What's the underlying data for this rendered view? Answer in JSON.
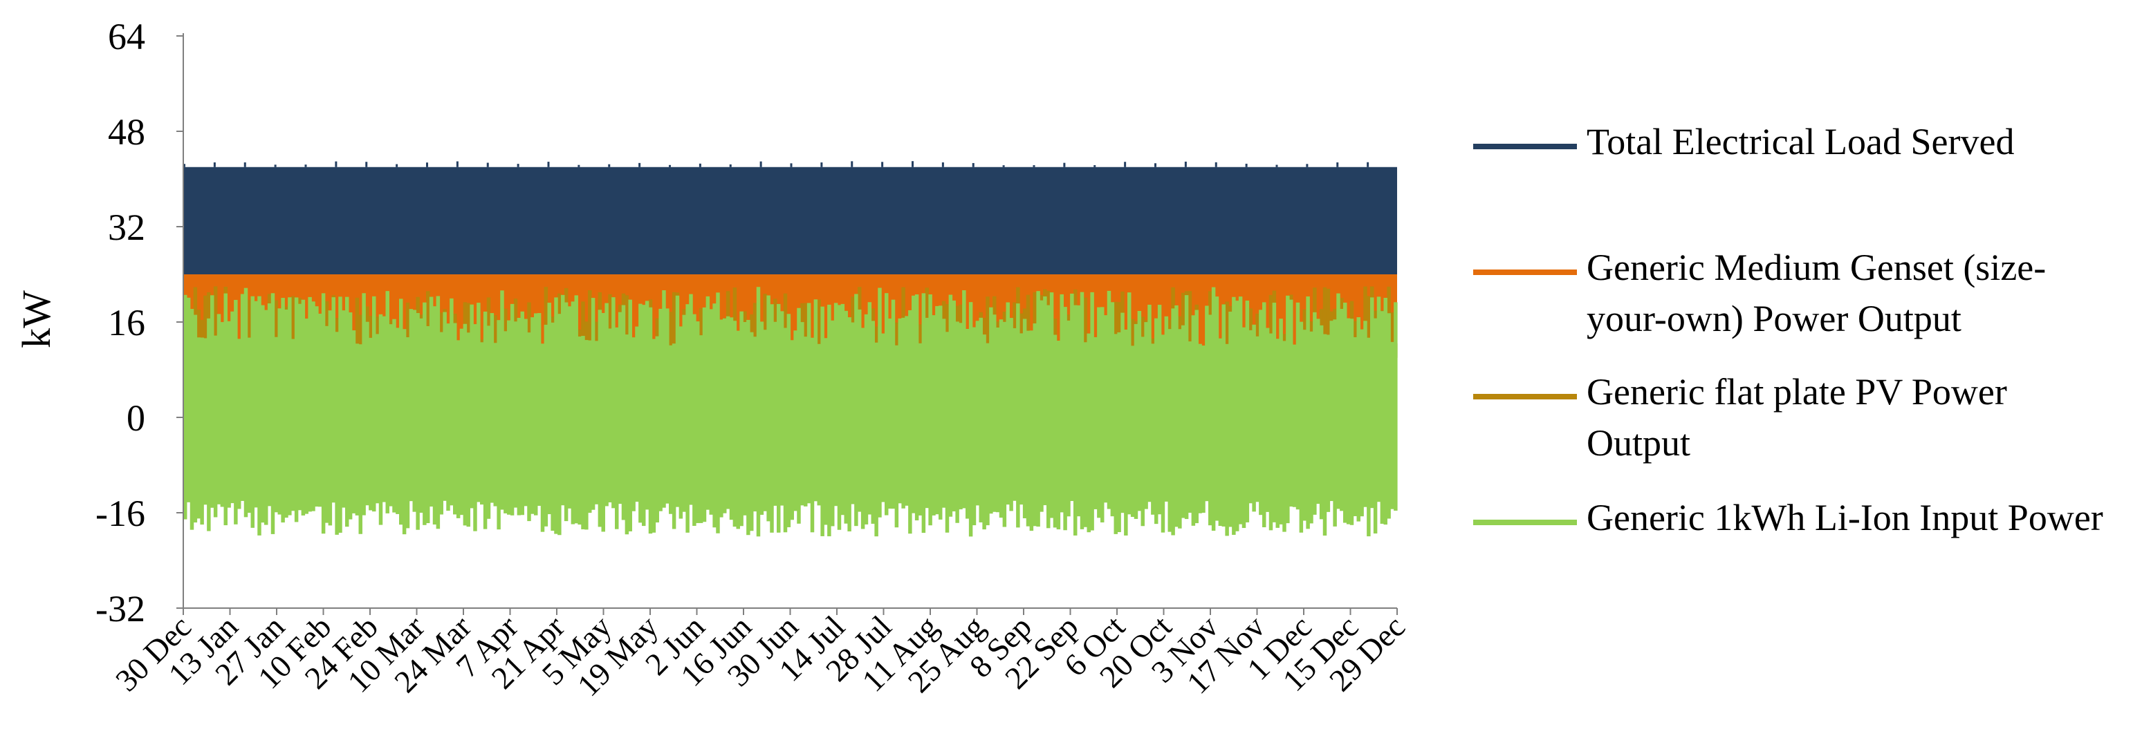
{
  "chart_data": {
    "type": "area",
    "ylabel": "kW",
    "xlabel": "",
    "ylim": [
      -32,
      64
    ],
    "yticks": [
      64,
      48,
      32,
      16,
      0,
      -16,
      -32
    ],
    "x_tick_labels": [
      "30 Dec",
      "13 Jan",
      "27 Jan",
      "10 Feb",
      "24 Feb",
      "10 Mar",
      "24 Mar",
      "7 Apr",
      "21 Apr",
      "5 May",
      "19 May",
      "2 Jun",
      "16 Jun",
      "30 Jun",
      "14 Jul",
      "28 Jul",
      "11 Aug",
      "25 Aug",
      "8 Sep",
      "22 Sep",
      "6 Oct",
      "20 Oct",
      "3 Nov",
      "17 Nov",
      "1 Dec",
      "15 Dec",
      "29 Dec"
    ],
    "x_range": [
      "30 Dec",
      "29 Dec"
    ],
    "grid": false,
    "legend_position": "right",
    "series": [
      {
        "name": "Total Electrical Load Served",
        "color": "#243F60",
        "typical_range_kw": [
          24,
          42
        ],
        "approx_value_kw": 42
      },
      {
        "name": "Generic Medium Genset (size-your-own) Power Output",
        "color": "#E46C0A",
        "approx_value_kw": 24
      },
      {
        "name": "Generic flat plate PV Power Output",
        "color": "#B8860B",
        "typical_range_kw": [
          10,
          22
        ]
      },
      {
        "name": "Generic 1kWh Li-Ion Input Power",
        "color": "#92D050",
        "typical_range_kw": [
          -20,
          22
        ]
      }
    ]
  }
}
